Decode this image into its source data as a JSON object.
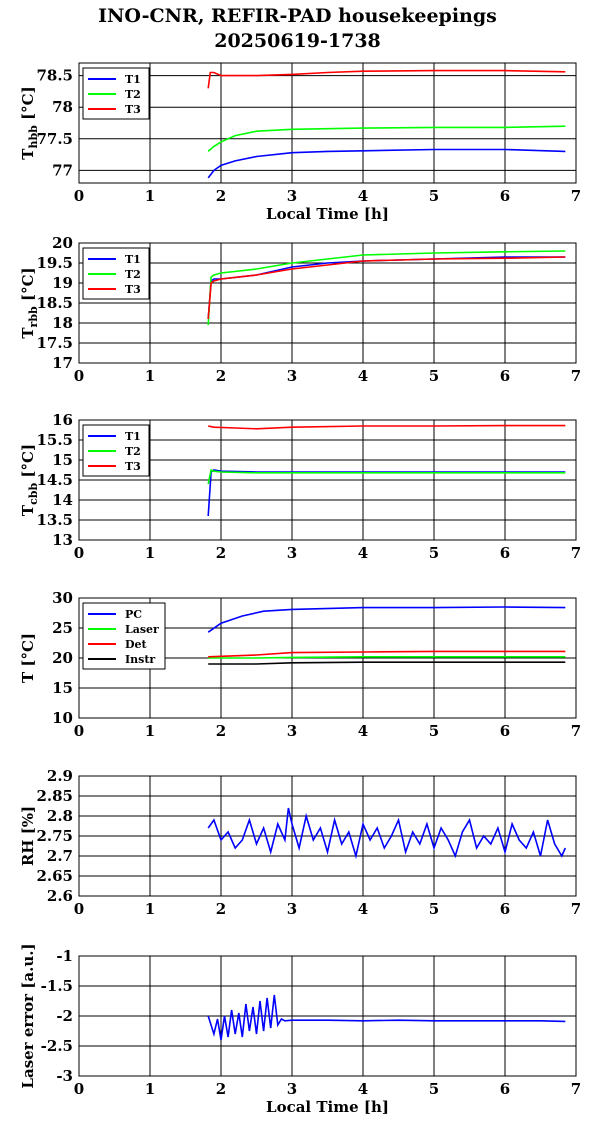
{
  "header": {
    "line1": "INO-CNR, REFIR-PAD housekeepings",
    "line2": "20250619-1738"
  },
  "chart_data": [
    {
      "type": "line",
      "xlabel": "Local Time [h]",
      "ylabel": "T",
      "ylabel_sub": "hbb",
      "ylabel_unit": " [°C]",
      "xlim": [
        0,
        7
      ],
      "ylim": [
        76.8,
        78.7
      ],
      "yticks": [
        77,
        77.5,
        78,
        78.5
      ],
      "ytick_labels": [
        "77",
        "77.5",
        "78",
        "78.5"
      ],
      "grid": true,
      "legend": "top-left",
      "series": [
        {
          "name": "T1",
          "color": "#0000ff",
          "x": [
            1.82,
            1.9,
            2.0,
            2.2,
            2.5,
            3.0,
            3.5,
            4.0,
            5.0,
            6.0,
            6.85
          ],
          "y": [
            76.88,
            77.0,
            77.08,
            77.15,
            77.22,
            77.28,
            77.3,
            77.31,
            77.33,
            77.33,
            77.3
          ]
        },
        {
          "name": "T2",
          "color": "#00ff00",
          "x": [
            1.82,
            1.9,
            2.0,
            2.2,
            2.5,
            3.0,
            3.5,
            4.0,
            5.0,
            6.0,
            6.85
          ],
          "y": [
            77.3,
            77.38,
            77.45,
            77.55,
            77.62,
            77.65,
            77.66,
            77.67,
            77.68,
            77.68,
            77.7
          ]
        },
        {
          "name": "T3",
          "color": "#ff0000",
          "x": [
            1.82,
            1.85,
            1.9,
            2.0,
            2.5,
            3.0,
            3.5,
            4.0,
            5.0,
            6.0,
            6.85
          ],
          "y": [
            78.3,
            78.55,
            78.55,
            78.5,
            78.5,
            78.52,
            78.55,
            78.57,
            78.58,
            78.58,
            78.56
          ]
        }
      ]
    },
    {
      "type": "line",
      "xlabel": "",
      "ylabel": "T",
      "ylabel_sub": "rbb",
      "ylabel_unit": " [°C]",
      "xlim": [
        0,
        7
      ],
      "ylim": [
        17,
        20
      ],
      "yticks": [
        17,
        17.5,
        18,
        18.5,
        19,
        19.5,
        20
      ],
      "ytick_labels": [
        "17",
        "17.5",
        "18",
        "18.5",
        "19",
        "19.5",
        "20"
      ],
      "grid": true,
      "legend": "top-left",
      "series": [
        {
          "name": "T1",
          "color": "#0000ff",
          "x": [
            1.82,
            1.86,
            1.9,
            2.0,
            2.5,
            3.0,
            3.5,
            4.0,
            5.0,
            6.0,
            6.85
          ],
          "y": [
            18.1,
            19.05,
            19.1,
            19.1,
            19.2,
            19.4,
            19.5,
            19.55,
            19.6,
            19.65,
            19.65
          ]
        },
        {
          "name": "T2",
          "color": "#00ff00",
          "x": [
            1.82,
            1.86,
            1.9,
            2.0,
            2.5,
            3.0,
            3.5,
            4.0,
            5.0,
            6.0,
            6.85
          ],
          "y": [
            17.95,
            19.15,
            19.2,
            19.25,
            19.35,
            19.5,
            19.6,
            19.7,
            19.75,
            19.78,
            19.8
          ]
        },
        {
          "name": "T3",
          "color": "#ff0000",
          "x": [
            1.82,
            1.86,
            1.9,
            2.0,
            2.5,
            3.0,
            3.5,
            4.0,
            5.0,
            6.0,
            6.85
          ],
          "y": [
            18.1,
            19.0,
            19.05,
            19.1,
            19.2,
            19.35,
            19.45,
            19.55,
            19.6,
            19.62,
            19.65
          ]
        }
      ]
    },
    {
      "type": "line",
      "xlabel": "",
      "ylabel": "T",
      "ylabel_sub": "cbb",
      "ylabel_unit": " [°C]",
      "xlim": [
        0,
        7
      ],
      "ylim": [
        13,
        16
      ],
      "yticks": [
        13,
        13.5,
        14,
        14.5,
        15,
        15.5,
        16
      ],
      "ytick_labels": [
        "13",
        "13.5",
        "14",
        "14.5",
        "15",
        "15.5",
        "16"
      ],
      "grid": true,
      "legend": "top-left",
      "series": [
        {
          "name": "T1",
          "color": "#0000ff",
          "x": [
            1.82,
            1.86,
            1.9,
            2.0,
            2.5,
            3.0,
            4.0,
            5.0,
            6.0,
            6.85
          ],
          "y": [
            13.6,
            14.7,
            14.75,
            14.72,
            14.7,
            14.7,
            14.7,
            14.7,
            14.7,
            14.7
          ]
        },
        {
          "name": "T2",
          "color": "#00ff00",
          "x": [
            1.82,
            1.86,
            1.9,
            2.0,
            2.5,
            3.0,
            4.0,
            5.0,
            6.0,
            6.85
          ],
          "y": [
            14.4,
            14.75,
            14.72,
            14.7,
            14.68,
            14.68,
            14.68,
            14.68,
            14.68,
            14.68
          ]
        },
        {
          "name": "T3",
          "color": "#ff0000",
          "x": [
            1.82,
            1.9,
            2.2,
            2.5,
            3.0,
            4.0,
            5.0,
            6.0,
            6.85
          ],
          "y": [
            15.85,
            15.82,
            15.8,
            15.78,
            15.82,
            15.85,
            15.85,
            15.86,
            15.86
          ]
        }
      ]
    },
    {
      "type": "line",
      "xlabel": "",
      "ylabel": "T [°C]",
      "ylabel_sub": "",
      "ylabel_unit": "",
      "xlim": [
        0,
        7
      ],
      "ylim": [
        10,
        30
      ],
      "yticks": [
        10,
        15,
        20,
        25,
        30
      ],
      "ytick_labels": [
        "10",
        "15",
        "20",
        "25",
        "30"
      ],
      "grid": true,
      "legend": "top-left",
      "series": [
        {
          "name": "PC",
          "color": "#0000ff",
          "x": [
            1.82,
            2.0,
            2.3,
            2.6,
            3.0,
            4.0,
            5.0,
            6.0,
            6.85
          ],
          "y": [
            24.3,
            25.8,
            27.0,
            27.8,
            28.1,
            28.4,
            28.4,
            28.5,
            28.4
          ]
        },
        {
          "name": "Laser",
          "color": "#00ff00",
          "x": [
            1.82,
            2.5,
            3.0,
            4.0,
            5.0,
            6.0,
            6.85
          ],
          "y": [
            20.0,
            20.0,
            20.1,
            20.2,
            20.2,
            20.2,
            20.2
          ]
        },
        {
          "name": "Det",
          "color": "#ff0000",
          "x": [
            1.82,
            2.5,
            3.0,
            4.0,
            5.0,
            6.0,
            6.85
          ],
          "y": [
            20.2,
            20.5,
            20.9,
            21.0,
            21.1,
            21.1,
            21.1
          ]
        },
        {
          "name": "Instr",
          "color": "#000000",
          "x": [
            1.82,
            2.5,
            3.0,
            4.0,
            5.0,
            6.0,
            6.85
          ],
          "y": [
            19.0,
            19.0,
            19.2,
            19.3,
            19.3,
            19.3,
            19.3
          ]
        }
      ]
    },
    {
      "type": "line",
      "xlabel": "",
      "ylabel": "RH [%]",
      "ylabel_sub": "",
      "ylabel_unit": "",
      "xlim": [
        0,
        7
      ],
      "ylim": [
        2.6,
        2.9
      ],
      "yticks": [
        2.6,
        2.65,
        2.7,
        2.75,
        2.8,
        2.85,
        2.9
      ],
      "ytick_labels": [
        "2.6",
        "2.65",
        "2.7",
        "2.75",
        "2.8",
        "2.85",
        "2.9"
      ],
      "grid": true,
      "legend": "none",
      "series": [
        {
          "name": "",
          "color": "#0000ff",
          "x": [
            1.82,
            1.9,
            2.0,
            2.1,
            2.2,
            2.3,
            2.4,
            2.5,
            2.6,
            2.7,
            2.8,
            2.9,
            2.95,
            3.0,
            3.1,
            3.2,
            3.3,
            3.4,
            3.5,
            3.6,
            3.7,
            3.8,
            3.9,
            4.0,
            4.1,
            4.2,
            4.3,
            4.4,
            4.5,
            4.6,
            4.7,
            4.8,
            4.9,
            5.0,
            5.1,
            5.2,
            5.3,
            5.4,
            5.5,
            5.6,
            5.7,
            5.8,
            5.9,
            6.0,
            6.1,
            6.2,
            6.3,
            6.4,
            6.5,
            6.6,
            6.7,
            6.8,
            6.85
          ],
          "y": [
            2.77,
            2.79,
            2.74,
            2.76,
            2.72,
            2.74,
            2.79,
            2.73,
            2.77,
            2.71,
            2.78,
            2.74,
            2.82,
            2.78,
            2.72,
            2.8,
            2.74,
            2.77,
            2.71,
            2.79,
            2.73,
            2.76,
            2.7,
            2.78,
            2.74,
            2.77,
            2.72,
            2.75,
            2.79,
            2.71,
            2.76,
            2.73,
            2.78,
            2.72,
            2.77,
            2.74,
            2.7,
            2.76,
            2.79,
            2.72,
            2.75,
            2.73,
            2.77,
            2.71,
            2.78,
            2.74,
            2.72,
            2.76,
            2.7,
            2.79,
            2.73,
            2.7,
            2.72
          ]
        }
      ]
    },
    {
      "type": "line",
      "xlabel": "Local Time [h]",
      "ylabel": "Laser error [a.u.]",
      "ylabel_sub": "",
      "ylabel_unit": "",
      "xlim": [
        0,
        7
      ],
      "ylim": [
        -3,
        -1
      ],
      "yticks": [
        -3,
        -2.5,
        -2,
        -1.5,
        -1
      ],
      "ytick_labels": [
        "-3",
        "-2.5",
        "-2",
        "-1.5",
        "-1"
      ],
      "grid": true,
      "legend": "none",
      "series": [
        {
          "name": "",
          "color": "#0000ff",
          "x": [
            1.82,
            1.9,
            1.95,
            2.0,
            2.05,
            2.1,
            2.15,
            2.2,
            2.25,
            2.3,
            2.35,
            2.4,
            2.45,
            2.5,
            2.55,
            2.6,
            2.65,
            2.7,
            2.75,
            2.8,
            2.85,
            2.9,
            3.0,
            3.5,
            4.0,
            4.5,
            5.0,
            5.5,
            6.0,
            6.5,
            6.85
          ],
          "y": [
            -2.0,
            -2.3,
            -2.05,
            -2.4,
            -2.0,
            -2.35,
            -1.9,
            -2.3,
            -1.95,
            -2.35,
            -1.8,
            -2.25,
            -1.85,
            -2.3,
            -1.75,
            -2.25,
            -1.7,
            -2.2,
            -1.65,
            -2.15,
            -2.05,
            -2.08,
            -2.07,
            -2.07,
            -2.08,
            -2.07,
            -2.08,
            -2.08,
            -2.08,
            -2.08,
            -2.09
          ]
        }
      ]
    }
  ]
}
